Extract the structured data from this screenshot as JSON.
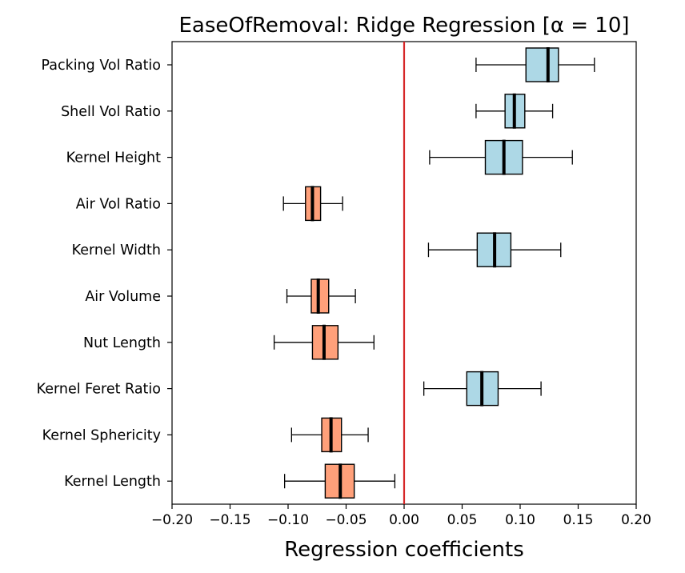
{
  "chart_data": {
    "type": "boxplot",
    "title": "EaseOfRemoval: Ridge Regression [α = 10]",
    "xlabel": "Regression coefficients",
    "ylabel": "",
    "xlim": [
      -0.2,
      0.2
    ],
    "xticks": [
      -0.2,
      -0.15,
      -0.1,
      -0.05,
      0.0,
      0.05,
      0.1,
      0.15,
      0.2
    ],
    "xtick_labels": [
      "−0.20",
      "−0.15",
      "−0.10",
      "−0.05",
      "0.00",
      "0.05",
      "0.10",
      "0.15",
      "0.20"
    ],
    "reference_line": {
      "x": 0.0,
      "color": "#d62728"
    },
    "colors": {
      "positive_fill": "#add8e6",
      "negative_fill": "#ffa07a",
      "edge": "#000000",
      "median": "#000000"
    },
    "grid": false,
    "legend": "none",
    "categories": [
      "Packing Vol Ratio",
      "Shell Vol Ratio",
      "Kernel Height",
      "Air Vol Ratio",
      "Kernel Width",
      "Air Volume",
      "Nut Length",
      "Kernel Feret Ratio",
      "Kernel Sphericity",
      "Kernel Length"
    ],
    "boxes": [
      {
        "whisker_low": 0.062,
        "q1": 0.105,
        "median": 0.124,
        "q3": 0.133,
        "whisker_high": 0.164,
        "sign": "positive"
      },
      {
        "whisker_low": 0.062,
        "q1": 0.087,
        "median": 0.095,
        "q3": 0.104,
        "whisker_high": 0.128,
        "sign": "positive"
      },
      {
        "whisker_low": 0.022,
        "q1": 0.07,
        "median": 0.086,
        "q3": 0.102,
        "whisker_high": 0.145,
        "sign": "positive"
      },
      {
        "whisker_low": -0.104,
        "q1": -0.085,
        "median": -0.079,
        "q3": -0.072,
        "whisker_high": -0.053,
        "sign": "negative"
      },
      {
        "whisker_low": 0.021,
        "q1": 0.063,
        "median": 0.078,
        "q3": 0.092,
        "whisker_high": 0.135,
        "sign": "positive"
      },
      {
        "whisker_low": -0.101,
        "q1": -0.08,
        "median": -0.074,
        "q3": -0.065,
        "whisker_high": -0.042,
        "sign": "negative"
      },
      {
        "whisker_low": -0.112,
        "q1": -0.079,
        "median": -0.069,
        "q3": -0.057,
        "whisker_high": -0.026,
        "sign": "negative"
      },
      {
        "whisker_low": 0.017,
        "q1": 0.054,
        "median": 0.067,
        "q3": 0.081,
        "whisker_high": 0.118,
        "sign": "positive"
      },
      {
        "whisker_low": -0.097,
        "q1": -0.071,
        "median": -0.063,
        "q3": -0.054,
        "whisker_high": -0.031,
        "sign": "negative"
      },
      {
        "whisker_low": -0.103,
        "q1": -0.068,
        "median": -0.055,
        "q3": -0.043,
        "whisker_high": -0.008,
        "sign": "negative"
      }
    ]
  }
}
